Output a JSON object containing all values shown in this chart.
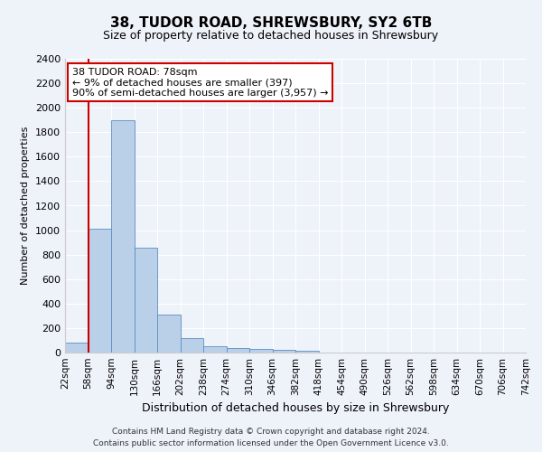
{
  "title": "38, TUDOR ROAD, SHREWSBURY, SY2 6TB",
  "subtitle": "Size of property relative to detached houses in Shrewsbury",
  "xlabel": "Distribution of detached houses by size in Shrewsbury",
  "ylabel": "Number of detached properties",
  "footer_line1": "Contains HM Land Registry data © Crown copyright and database right 2024.",
  "footer_line2": "Contains public sector information licensed under the Open Government Licence v3.0.",
  "annotation_text": "38 TUDOR ROAD: 78sqm\n← 9% of detached houses are smaller (397)\n90% of semi-detached houses are larger (3,957) →",
  "bin_labels": [
    "22sqm",
    "58sqm",
    "94sqm",
    "130sqm",
    "166sqm",
    "202sqm",
    "238sqm",
    "274sqm",
    "310sqm",
    "346sqm",
    "382sqm",
    "418sqm",
    "454sqm",
    "490sqm",
    "526sqm",
    "562sqm",
    "598sqm",
    "634sqm",
    "670sqm",
    "706sqm",
    "742sqm"
  ],
  "bar_values": [
    80,
    1010,
    1900,
    860,
    310,
    120,
    55,
    40,
    30,
    20,
    15,
    0,
    0,
    0,
    0,
    0,
    0,
    0,
    0,
    0
  ],
  "bar_color": "#bad0e8",
  "bar_edge_color": "#5b8ec4",
  "vline_x": 1,
  "ylim": [
    0,
    2400
  ],
  "yticks": [
    0,
    200,
    400,
    600,
    800,
    1000,
    1200,
    1400,
    1600,
    1800,
    2000,
    2200,
    2400
  ],
  "background_color": "#eef2f9",
  "grid_color": "#ffffff",
  "annotation_box_color": "#ffffff",
  "annotation_box_edge": "#cc0000",
  "vline_color": "#cc0000",
  "title_fontsize": 11,
  "subtitle_fontsize": 9,
  "xlabel_fontsize": 9,
  "ylabel_fontsize": 8,
  "tick_fontsize": 8,
  "xtick_fontsize": 7.5,
  "footer_fontsize": 6.5
}
